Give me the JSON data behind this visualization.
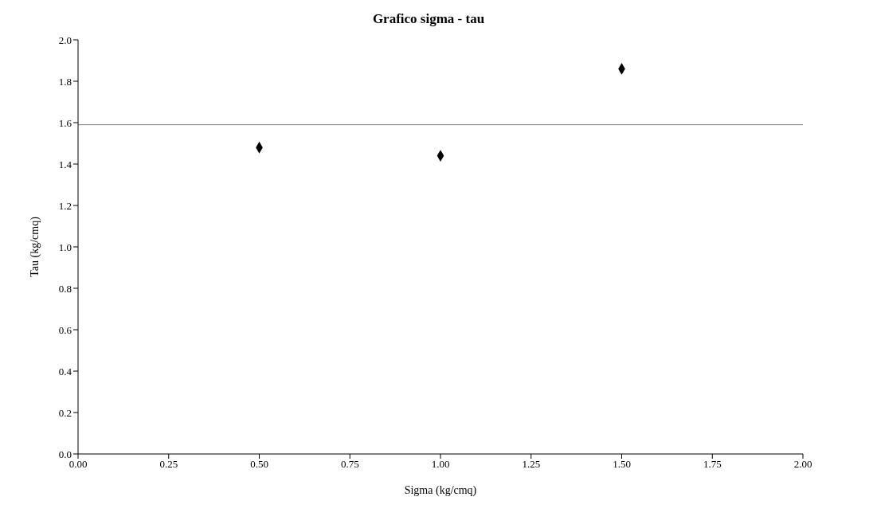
{
  "chart_data": {
    "type": "scatter",
    "title": "Grafico sigma - tau",
    "xlabel": "Sigma (kg/cmq)",
    "ylabel": "Tau (kg/cmq)",
    "x": [
      0.5,
      1.0,
      1.5
    ],
    "values": [
      1.48,
      1.44,
      1.86
    ],
    "color": "#000000",
    "marker": "diamond",
    "xlim": [
      0,
      2
    ],
    "xticks": [
      {
        "value": 0,
        "label": "0.00"
      },
      {
        "value": 0.25,
        "label": "0.25"
      },
      {
        "value": 0.5,
        "label": "0.50"
      },
      {
        "value": 0.75,
        "label": "0.75"
      },
      {
        "value": 1,
        "label": "1.00"
      },
      {
        "value": 1.25,
        "label": "1.25"
      },
      {
        "value": 1.5,
        "label": "1.50"
      },
      {
        "value": 1.75,
        "label": "1.75"
      },
      {
        "value": 2,
        "label": "2.00"
      }
    ],
    "ylim": [
      0,
      2
    ],
    "yticks": [
      {
        "value": 0,
        "label": "0.0"
      },
      {
        "value": 0.2,
        "label": "0.2"
      },
      {
        "value": 0.4,
        "label": "0.4"
      },
      {
        "value": 0.6,
        "label": "0.6"
      },
      {
        "value": 0.8,
        "label": "0.8"
      },
      {
        "value": 1,
        "label": "1.0"
      },
      {
        "value": 1.2,
        "label": "1.2"
      },
      {
        "value": 1.4,
        "label": "1.4"
      },
      {
        "value": 1.6,
        "label": "1.6"
      },
      {
        "value": 1.8,
        "label": "1.8"
      },
      {
        "value": 2,
        "label": "2.0"
      }
    ],
    "ref_lines": [
      {
        "axis": "y",
        "value": 1.59,
        "color": "#808080"
      }
    ],
    "grid": false,
    "legend": false
  }
}
